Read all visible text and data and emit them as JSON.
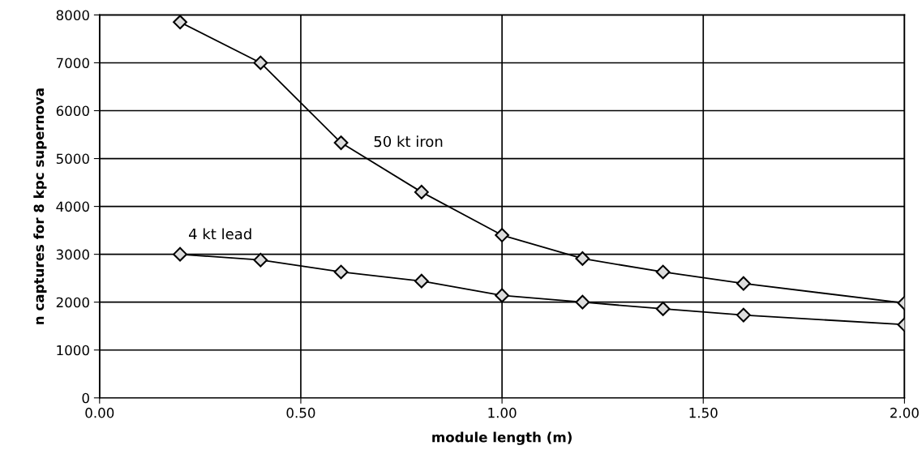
{
  "chart_data": {
    "type": "line",
    "xlabel": "module length (m)",
    "ylabel": "n captures for 8 kpc supernova",
    "x": [
      0.2,
      0.4,
      0.6,
      0.8,
      1.0,
      1.2,
      1.4,
      1.6,
      2.0
    ],
    "series": [
      {
        "name": "50 kt iron",
        "color": "#000000",
        "values": [
          7850,
          7000,
          5330,
          4300,
          3400,
          2910,
          2630,
          2390,
          1980
        ]
      },
      {
        "name": "4 kt lead",
        "color": "#000000",
        "values": [
          3000,
          2880,
          2630,
          2440,
          2140,
          2000,
          1860,
          1730,
          1530
        ]
      }
    ],
    "xlim": [
      0,
      2
    ],
    "ylim": [
      0,
      8000
    ],
    "xticks": [
      {
        "value": 0,
        "label": "0.00"
      },
      {
        "value": 0.5,
        "label": "0.50"
      },
      {
        "value": 1.0,
        "label": "1.00"
      },
      {
        "value": 1.5,
        "label": "1.50"
      },
      {
        "value": 2.0,
        "label": "2.00"
      }
    ],
    "yticks": [
      0,
      1000,
      2000,
      3000,
      4000,
      5000,
      6000,
      7000,
      8000
    ],
    "grid": true,
    "marker": "diamond",
    "line_style": "solid",
    "legend": false
  }
}
